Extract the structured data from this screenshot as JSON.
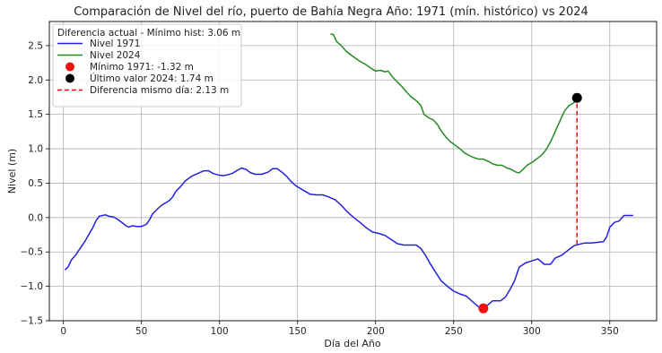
{
  "chart_data": {
    "type": "line",
    "title": "Comparación de Nivel del río, puerto de Bahía Negra Año: 1971 (mín. histórico) vs 2024",
    "xlabel": "Día del Año",
    "ylabel": "Nivel (m)",
    "xlim": [
      -9,
      380
    ],
    "ylim": [
      -1.5,
      2.85
    ],
    "xticks": [
      0,
      50,
      100,
      150,
      200,
      250,
      300,
      350
    ],
    "yticks": [
      -1.5,
      -1.0,
      -0.5,
      0.0,
      0.5,
      1.0,
      1.5,
      2.0,
      2.5
    ],
    "xtick_labels": [
      "0",
      "50",
      "100",
      "150",
      "200",
      "250",
      "300",
      "350"
    ],
    "ytick_labels": [
      "−1.5",
      "−1.0",
      "−0.5",
      "0.0",
      "0.5",
      "1.0",
      "1.5",
      "2.0",
      "2.5"
    ],
    "grid": true,
    "legend": {
      "placement": "top-left",
      "title": "Diferencia actual - Mínimo hist: 3.06 m",
      "entries": [
        {
          "label": "Nivel 1971",
          "kind": "line",
          "color": "#2222dd"
        },
        {
          "label": "Nivel 2024",
          "kind": "line",
          "color": "#228b22"
        },
        {
          "label": "Mínimo 1971: -1.32 m",
          "kind": "marker",
          "color": "#ee1111"
        },
        {
          "label": "Último valor 2024: 1.74 m",
          "kind": "marker",
          "color": "#000000"
        },
        {
          "label": "Diferencia mismo día: 2.13 m",
          "kind": "dashed",
          "color": "#ee1111"
        }
      ]
    },
    "series": [
      {
        "name": "Nivel 1971",
        "color": "#2222dd",
        "points": [
          [
            1,
            -0.76
          ],
          [
            3,
            -0.72
          ],
          [
            5,
            -0.62
          ],
          [
            8,
            -0.54
          ],
          [
            11,
            -0.44
          ],
          [
            14,
            -0.34
          ],
          [
            17,
            -0.22
          ],
          [
            19,
            -0.14
          ],
          [
            21,
            -0.04
          ],
          [
            23,
            0.02
          ],
          [
            25,
            0.03
          ],
          [
            27,
            0.04
          ],
          [
            29,
            0.02
          ],
          [
            32,
            0.01
          ],
          [
            35,
            -0.03
          ],
          [
            38,
            -0.08
          ],
          [
            40,
            -0.12
          ],
          [
            42,
            -0.14
          ],
          [
            44,
            -0.12
          ],
          [
            47,
            -0.13
          ],
          [
            50,
            -0.13
          ],
          [
            53,
            -0.1
          ],
          [
            55,
            -0.04
          ],
          [
            57,
            0.05
          ],
          [
            60,
            0.12
          ],
          [
            63,
            0.18
          ],
          [
            66,
            0.22
          ],
          [
            68,
            0.25
          ],
          [
            70,
            0.3
          ],
          [
            72,
            0.38
          ],
          [
            75,
            0.45
          ],
          [
            78,
            0.53
          ],
          [
            82,
            0.6
          ],
          [
            86,
            0.64
          ],
          [
            90,
            0.68
          ],
          [
            93,
            0.68
          ],
          [
            96,
            0.64
          ],
          [
            99,
            0.62
          ],
          [
            102,
            0.61
          ],
          [
            105,
            0.62
          ],
          [
            108,
            0.64
          ],
          [
            111,
            0.68
          ],
          [
            114,
            0.72
          ],
          [
            117,
            0.7
          ],
          [
            120,
            0.65
          ],
          [
            123,
            0.63
          ],
          [
            127,
            0.63
          ],
          [
            131,
            0.66
          ],
          [
            134,
            0.71
          ],
          [
            137,
            0.71
          ],
          [
            140,
            0.66
          ],
          [
            143,
            0.6
          ],
          [
            146,
            0.52
          ],
          [
            149,
            0.46
          ],
          [
            152,
            0.42
          ],
          [
            155,
            0.38
          ],
          [
            158,
            0.34
          ],
          [
            162,
            0.33
          ],
          [
            166,
            0.33
          ],
          [
            170,
            0.3
          ],
          [
            174,
            0.26
          ],
          [
            178,
            0.18
          ],
          [
            182,
            0.08
          ],
          [
            186,
            0.0
          ],
          [
            190,
            -0.07
          ],
          [
            194,
            -0.15
          ],
          [
            198,
            -0.21
          ],
          [
            202,
            -0.23
          ],
          [
            206,
            -0.26
          ],
          [
            210,
            -0.32
          ],
          [
            214,
            -0.38
          ],
          [
            218,
            -0.4
          ],
          [
            222,
            -0.4
          ],
          [
            226,
            -0.4
          ],
          [
            229,
            -0.45
          ],
          [
            232,
            -0.55
          ],
          [
            235,
            -0.67
          ],
          [
            238,
            -0.78
          ],
          [
            242,
            -0.92
          ],
          [
            246,
            -1.0
          ],
          [
            250,
            -1.07
          ],
          [
            254,
            -1.11
          ],
          [
            258,
            -1.14
          ],
          [
            262,
            -1.22
          ],
          [
            266,
            -1.3
          ],
          [
            269,
            -1.32
          ],
          [
            272,
            -1.27
          ],
          [
            275,
            -1.21
          ],
          [
            280,
            -1.21
          ],
          [
            283,
            -1.16
          ],
          [
            286,
            -1.05
          ],
          [
            289,
            -0.92
          ],
          [
            292,
            -0.72
          ],
          [
            296,
            -0.66
          ],
          [
            300,
            -0.63
          ],
          [
            304,
            -0.6
          ],
          [
            308,
            -0.68
          ],
          [
            312,
            -0.68
          ],
          [
            315,
            -0.59
          ],
          [
            319,
            -0.55
          ],
          [
            323,
            -0.48
          ],
          [
            327,
            -0.41
          ],
          [
            330,
            -0.39
          ],
          [
            334,
            -0.37
          ],
          [
            338,
            -0.37
          ],
          [
            342,
            -0.36
          ],
          [
            346,
            -0.35
          ],
          [
            348,
            -0.28
          ],
          [
            350,
            -0.14
          ],
          [
            353,
            -0.07
          ],
          [
            356,
            -0.05
          ],
          [
            359,
            0.03
          ],
          [
            362,
            0.03
          ],
          [
            365,
            0.03
          ]
        ]
      },
      {
        "name": "Nivel 2024",
        "color": "#228b22",
        "points": [
          [
            171,
            2.67
          ],
          [
            173,
            2.66
          ],
          [
            175,
            2.56
          ],
          [
            178,
            2.5
          ],
          [
            181,
            2.42
          ],
          [
            185,
            2.35
          ],
          [
            190,
            2.27
          ],
          [
            194,
            2.22
          ],
          [
            197,
            2.17
          ],
          [
            200,
            2.13
          ],
          [
            203,
            2.14
          ],
          [
            206,
            2.12
          ],
          [
            208,
            2.13
          ],
          [
            211,
            2.04
          ],
          [
            214,
            1.97
          ],
          [
            217,
            1.9
          ],
          [
            220,
            1.82
          ],
          [
            223,
            1.75
          ],
          [
            226,
            1.7
          ],
          [
            229,
            1.63
          ],
          [
            231,
            1.5
          ],
          [
            234,
            1.45
          ],
          [
            237,
            1.42
          ],
          [
            240,
            1.34
          ],
          [
            242,
            1.26
          ],
          [
            245,
            1.17
          ],
          [
            248,
            1.1
          ],
          [
            251,
            1.05
          ],
          [
            254,
            1.0
          ],
          [
            257,
            0.94
          ],
          [
            260,
            0.9
          ],
          [
            263,
            0.87
          ],
          [
            266,
            0.85
          ],
          [
            269,
            0.85
          ],
          [
            272,
            0.82
          ],
          [
            275,
            0.78
          ],
          [
            278,
            0.76
          ],
          [
            281,
            0.76
          ],
          [
            284,
            0.72
          ],
          [
            287,
            0.7
          ],
          [
            290,
            0.66
          ],
          [
            292,
            0.65
          ],
          [
            294,
            0.69
          ],
          [
            297,
            0.76
          ],
          [
            300,
            0.8
          ],
          [
            303,
            0.85
          ],
          [
            306,
            0.9
          ],
          [
            309,
            0.98
          ],
          [
            312,
            1.1
          ],
          [
            315,
            1.25
          ],
          [
            318,
            1.4
          ],
          [
            321,
            1.55
          ],
          [
            324,
            1.63
          ],
          [
            327,
            1.67
          ],
          [
            329,
            1.74
          ]
        ]
      }
    ],
    "markers": [
      {
        "label": "Mínimo 1971: -1.32 m",
        "x": 269,
        "y": -1.32,
        "color": "#ee1111"
      },
      {
        "label": "Último valor 2024: 1.74 m",
        "x": 329,
        "y": 1.74,
        "color": "#000000"
      }
    ],
    "difference_line": {
      "x": 329,
      "y_from": -0.39,
      "y_to": 1.74,
      "color": "#ee1111"
    }
  }
}
